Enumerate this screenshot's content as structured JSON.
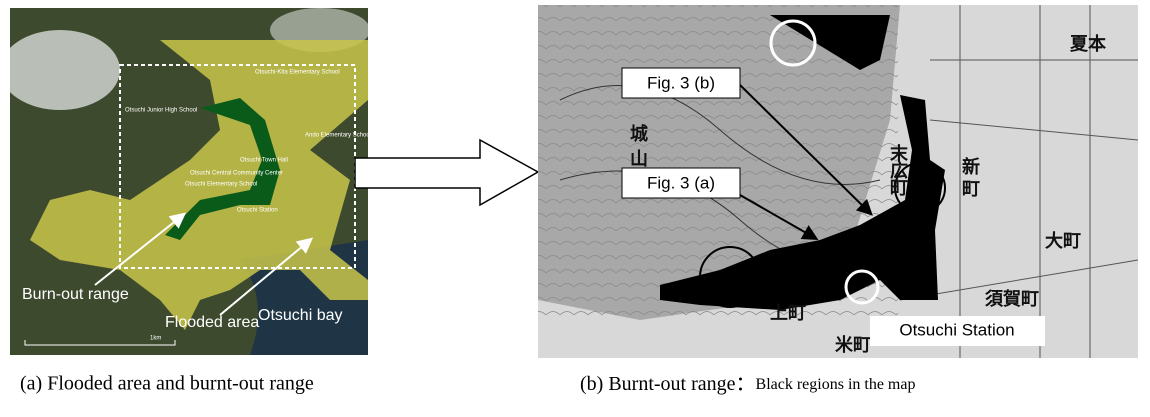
{
  "left_panel": {
    "place_labels": [
      "Otsuchi-Kita Elementary School",
      "Otsuchi Junior High School",
      "Ando Elementary Schoo",
      "Otsuchi Town Hall",
      "Otsuchi Central Community Center",
      "Otsuchi Elementary School",
      "Otsuchi Station"
    ],
    "annotations": {
      "burn_out": "Burn-out range",
      "flooded": "Flooded area",
      "bay": "Otsuchi bay",
      "scale": "1km"
    },
    "caption": "(a) Flooded area and burnt-out range"
  },
  "right_panel": {
    "callouts": [
      "Fig. 3 (b)",
      "Fig. 3 (a)"
    ],
    "station": "Otsuchi Station",
    "map_labels": [
      "夏本",
      "城",
      "山",
      "新",
      "町",
      "末",
      "広",
      "町",
      "大町",
      "上町",
      "須賀町",
      "米町"
    ],
    "caption_main": "(b) Burnt-out range：",
    "caption_note": "Black regions in the map"
  }
}
